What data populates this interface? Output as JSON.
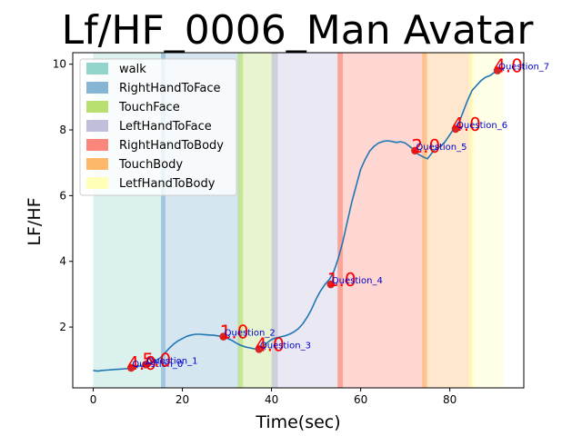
{
  "chart_data": {
    "type": "line",
    "title": "Lf/HF_0006_Man Avatar",
    "xlabel": "Time(sec)",
    "ylabel": "LF/HF",
    "xlim": [
      -4.6,
      96.6
    ],
    "ylim": [
      0.15,
      10.35
    ],
    "xticks": [
      0,
      20,
      40,
      60,
      80
    ],
    "yticks": [
      2,
      4,
      6,
      8,
      10
    ],
    "legend_position": "top-left",
    "line_color": "#1f77b4",
    "marker_color": "#d62728",
    "phases": [
      {
        "name": "walk",
        "start": 0,
        "end": 15.5,
        "color": "#8dd3c7"
      },
      {
        "name": "RightHandToFace",
        "start": 15.5,
        "end": 33,
        "color": "#80b1d3"
      },
      {
        "name": "TouchFace",
        "start": 33,
        "end": 41,
        "color": "#b3de69"
      },
      {
        "name": "LeftHandToFace",
        "start": 41,
        "end": 55,
        "color": "#bebada"
      },
      {
        "name": "RightHandToBody",
        "start": 55,
        "end": 74.5,
        "color": "#fb8072"
      },
      {
        "name": "TouchBody",
        "start": 74.5,
        "end": 85,
        "color": "#fdb462"
      },
      {
        "name": "LetfHandToBody",
        "start": 85,
        "end": 92,
        "color": "#ffffb3"
      }
    ],
    "transitions": [
      {
        "start": 15.2,
        "end": 16.2,
        "color": "#80b1d3"
      },
      {
        "start": 32.4,
        "end": 33.6,
        "color": "#b3de69"
      },
      {
        "start": 40.0,
        "end": 41.4,
        "color": "#bebada"
      },
      {
        "start": 54.8,
        "end": 56.0,
        "color": "#fb8072"
      },
      {
        "start": 73.8,
        "end": 74.9,
        "color": "#fdb462"
      },
      {
        "start": 84.3,
        "end": 85.4,
        "color": "#ffffb3"
      }
    ],
    "series": [
      {
        "x": [
          0,
          1,
          2,
          3,
          4,
          5,
          6,
          7,
          8,
          9,
          10,
          11,
          12,
          13,
          14,
          15,
          16,
          17,
          18,
          19,
          20,
          21,
          22,
          23,
          24,
          25,
          26,
          27,
          28,
          29,
          30,
          31,
          32,
          33,
          34,
          35,
          36,
          37,
          38,
          39,
          40,
          41,
          42,
          43,
          44,
          45,
          46,
          47,
          48,
          49,
          50,
          51,
          52,
          53,
          54,
          55,
          56,
          57,
          58,
          59,
          60,
          61,
          62,
          63,
          64,
          65,
          66,
          67,
          68,
          69,
          70,
          71,
          72,
          73,
          74,
          75,
          76,
          77,
          78,
          79,
          80,
          81,
          82,
          83,
          84,
          85,
          86,
          87,
          88,
          89,
          90,
          91
        ],
        "y": [
          0.68,
          0.66,
          0.68,
          0.69,
          0.7,
          0.71,
          0.72,
          0.73,
          0.74,
          0.76,
          0.8,
          0.84,
          0.87,
          0.92,
          0.98,
          1.06,
          1.2,
          1.35,
          1.48,
          1.58,
          1.65,
          1.72,
          1.76,
          1.78,
          1.78,
          1.77,
          1.76,
          1.75,
          1.73,
          1.71,
          1.66,
          1.6,
          1.52,
          1.45,
          1.4,
          1.37,
          1.34,
          1.33,
          1.4,
          1.52,
          1.62,
          1.67,
          1.7,
          1.73,
          1.78,
          1.85,
          1.95,
          2.1,
          2.3,
          2.55,
          2.85,
          3.1,
          3.3,
          3.45,
          3.7,
          4.1,
          4.6,
          5.2,
          5.8,
          6.3,
          6.8,
          7.1,
          7.35,
          7.5,
          7.6,
          7.65,
          7.67,
          7.65,
          7.62,
          7.64,
          7.6,
          7.5,
          7.38,
          7.25,
          7.18,
          7.12,
          7.3,
          7.45,
          7.5,
          7.65,
          7.85,
          8.05,
          8.2,
          8.55,
          8.9,
          9.2,
          9.35,
          9.5,
          9.6,
          9.65,
          9.75,
          9.85
        ]
      }
    ],
    "questions": [
      {
        "label": "Question_0",
        "x": 8.5,
        "y": 0.76,
        "score": "4.0"
      },
      {
        "label": "Question_1",
        "x": 11.8,
        "y": 0.86,
        "score": "5.0"
      },
      {
        "label": "Question_2",
        "x": 29.2,
        "y": 1.71,
        "score": "1.0"
      },
      {
        "label": "Question_3",
        "x": 37.2,
        "y": 1.33,
        "score": "4.0"
      },
      {
        "label": "Question_4",
        "x": 53.3,
        "y": 3.3,
        "score": "1.0"
      },
      {
        "label": "Question_5",
        "x": 72.2,
        "y": 7.37,
        "score": "2.0"
      },
      {
        "label": "Question_6",
        "x": 81.3,
        "y": 8.03,
        "score": "4.0"
      },
      {
        "label": "Question_7",
        "x": 90.7,
        "y": 9.81,
        "score": "4.0"
      }
    ]
  }
}
